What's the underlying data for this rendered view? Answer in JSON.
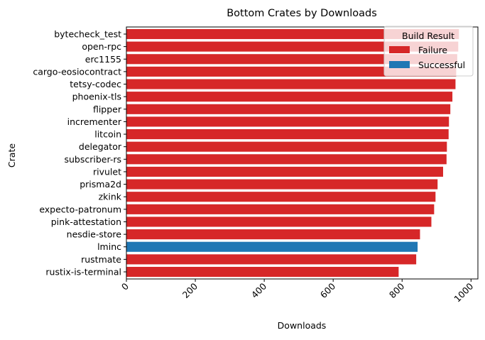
{
  "chart_data": {
    "type": "bar",
    "orientation": "horizontal",
    "title": "Bottom Crates by Downloads",
    "xlabel": "Downloads",
    "ylabel": "Crate",
    "xlim": [
      0,
      1020
    ],
    "xticks": [
      0,
      200,
      400,
      600,
      800,
      1000
    ],
    "grid": false,
    "legend": {
      "title": "Build Result",
      "placement": "top-right",
      "entries": [
        {
          "label": "Failure",
          "color": "#d62728"
        },
        {
          "label": "Successful",
          "color": "#1f77b4"
        }
      ]
    },
    "bars": [
      {
        "crate": "bytecheck_test",
        "downloads": 965,
        "result": "Failure"
      },
      {
        "crate": "open-rpc",
        "downloads": 963,
        "result": "Failure"
      },
      {
        "crate": "erc1155",
        "downloads": 960,
        "result": "Failure"
      },
      {
        "crate": "cargo-eosiocontract",
        "downloads": 957,
        "result": "Failure"
      },
      {
        "crate": "tetsy-codec",
        "downloads": 955,
        "result": "Failure"
      },
      {
        "crate": "phoenix-tls",
        "downloads": 946,
        "result": "Failure"
      },
      {
        "crate": "flipper",
        "downloads": 940,
        "result": "Failure"
      },
      {
        "crate": "incrementer",
        "downloads": 936,
        "result": "Failure"
      },
      {
        "crate": "litcoin",
        "downloads": 935,
        "result": "Failure"
      },
      {
        "crate": "delegator",
        "downloads": 930,
        "result": "Failure"
      },
      {
        "crate": "subscriber-rs",
        "downloads": 929,
        "result": "Failure"
      },
      {
        "crate": "rivulet",
        "downloads": 919,
        "result": "Failure"
      },
      {
        "crate": "prisma2d",
        "downloads": 903,
        "result": "Failure"
      },
      {
        "crate": "zkink",
        "downloads": 897,
        "result": "Failure"
      },
      {
        "crate": "expecto-patronum",
        "downloads": 893,
        "result": "Failure"
      },
      {
        "crate": "pink-attestation",
        "downloads": 885,
        "result": "Failure"
      },
      {
        "crate": "nesdie-store",
        "downloads": 852,
        "result": "Failure"
      },
      {
        "crate": "lminc",
        "downloads": 845,
        "result": "Successful"
      },
      {
        "crate": "rustmate",
        "downloads": 841,
        "result": "Failure"
      },
      {
        "crate": "rustix-is-terminal",
        "downloads": 790,
        "result": "Failure"
      }
    ]
  }
}
